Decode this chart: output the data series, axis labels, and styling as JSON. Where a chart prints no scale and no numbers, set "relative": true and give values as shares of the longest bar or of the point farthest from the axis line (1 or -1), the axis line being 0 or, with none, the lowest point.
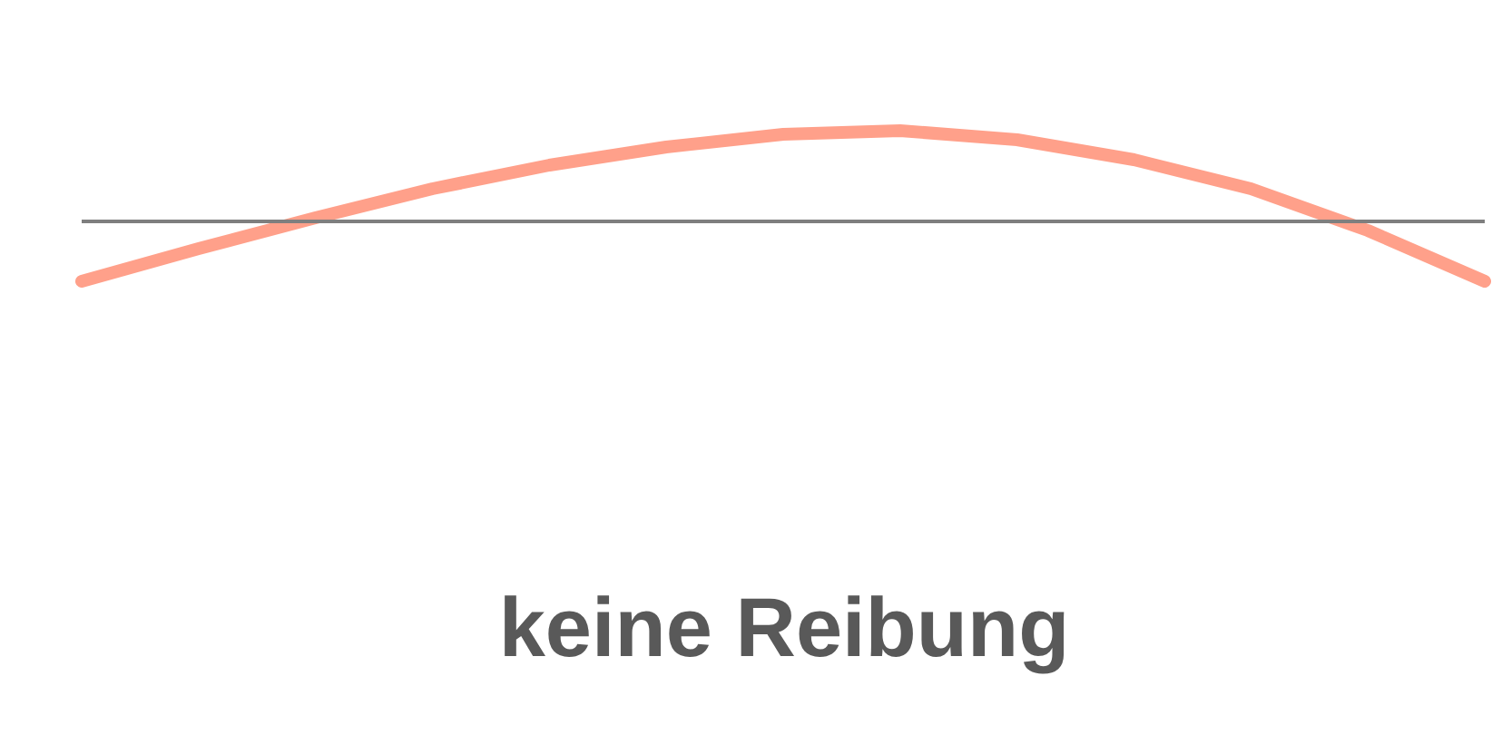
{
  "chart_data": {
    "type": "line",
    "relative": true,
    "xlabel": "keine Reibung",
    "categories": [
      null,
      null,
      null,
      null,
      null,
      null,
      null,
      null,
      null,
      null,
      null,
      null,
      null
    ],
    "series": [
      {
        "color": "#ffa08a",
        "values": [
          -0.66,
          -0.3,
          0.04,
          0.36,
          0.62,
          0.82,
          0.96,
          1,
          0.9,
          0.68,
          0.36,
          -0.1,
          -0.66
        ]
      }
    ]
  }
}
